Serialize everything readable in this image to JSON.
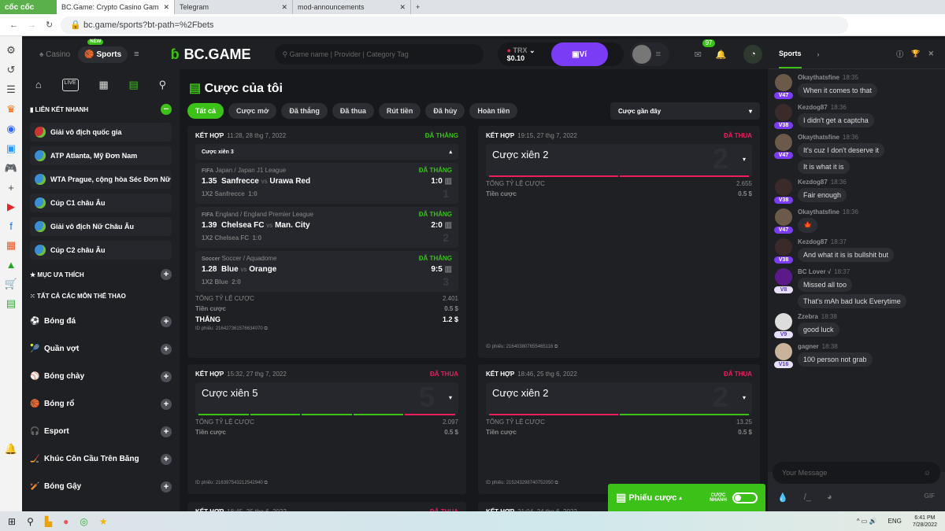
{
  "browser": {
    "brand": "cốc cốc",
    "tabs": [
      {
        "title": "BC.Game: Crypto Casino Gam",
        "active": true
      },
      {
        "title": "Telegram"
      },
      {
        "title": "mod-announcements"
      }
    ],
    "url": "bc.game/sports?bt-path=%2Fbets"
  },
  "header": {
    "casino": "Casino",
    "sports": "Sports",
    "new_badge": "NEW",
    "logo": "BC.GAME",
    "search_placeholder": "Game name | Provider | Category Tag",
    "currency": "TRX",
    "balance": "$0.10",
    "wallet": "Ví",
    "mail_count": "97"
  },
  "sidebar": {
    "quick_links_title": "LIÊN KẾT NHANH",
    "quick_links": [
      "Giải vô địch quốc gia",
      "ATP Atlanta, Mỹ Đơn Nam",
      "WTA Prague, cộng hòa Séc Đơn Nữ",
      "Cúp C1 châu Âu",
      "Giải vô địch Nữ Châu Âu",
      "Cúp C2 châu Âu"
    ],
    "favorites": "MỤC ƯA THÍCH",
    "all_sports": "TẤT CẢ CÁC MÔN THỂ THAO",
    "sports": [
      "Bóng đá",
      "Quần vợt",
      "Bóng chày",
      "Bóng rổ",
      "Esport",
      "Khúc Côn Cầu Trên Băng",
      "Bóng Gậy"
    ]
  },
  "main": {
    "title": "Cược của tôi",
    "filters": [
      "Tất cả",
      "Cược mở",
      "Đã thắng",
      "Đã thua",
      "Rút tiền",
      "Đã hủy",
      "Hoàn tiền"
    ],
    "sort": "Cược gần đây",
    "labels": {
      "combo": "KẾT HỢP",
      "total_odds": "TỔNG TỶ LỆ CƯỢC",
      "stake": "Tiền cược",
      "win": "THẮNG",
      "ticket": "ID phiếu:"
    },
    "bets": [
      {
        "time": "11:28, 28 thg 7, 2022",
        "status": "ĐÃ THẮNG",
        "type": "Cược xiên 3",
        "odds": "2.401",
        "stake": "0.5 $",
        "payout": "1.2 $",
        "id": "216427361576634070",
        "legs": [
          {
            "league": "Japan / Japan J1 League",
            "sport": "FIFA",
            "status": "ĐÃ THẮNG",
            "odds": "1.35",
            "home": "Sanfrecce",
            "away": "Urawa Red",
            "score": "1:0",
            "pick": "1X2 Sanfrecce",
            "pick_score": "1:0"
          },
          {
            "league": "England / England Premier League",
            "sport": "FIFA",
            "status": "ĐÃ THẮNG",
            "odds": "1.39",
            "home": "Chelsea FC",
            "away": "Man. City",
            "score": "2:0",
            "pick": "1X2 Chelsea FC",
            "pick_score": "1:0"
          },
          {
            "league": "Soccer / Aquadome",
            "sport": "Soccer",
            "status": "ĐÃ THẮNG",
            "odds": "1.28",
            "home": "Blue",
            "away": "Orange",
            "score": "9:5",
            "pick": "1X2 Blue",
            "pick_score": "2:0"
          }
        ]
      },
      {
        "time": "19:15, 27 thg 7, 2022",
        "status": "ĐÃ THUA",
        "type": "Cược xiên 2",
        "count": "2",
        "odds": "2.655",
        "stake": "0.5 $",
        "id": "216403807655465116",
        "results": [
          "lose",
          "lose"
        ]
      },
      {
        "time": "15:32, 27 thg 7, 2022",
        "status": "ĐÃ THUA",
        "type": "Cược xiên 5",
        "count": "5",
        "odds": "2.097",
        "stake": "0.5 $",
        "id": "216397543212542940",
        "results": [
          "win",
          "win",
          "win",
          "win",
          "lose"
        ]
      },
      {
        "time": "18:46, 25 thg 6, 2022",
        "status": "ĐÃ THUA",
        "type": "Cược xiên 2",
        "count": "2",
        "odds": "13.25",
        "stake": "0.5 $",
        "id": "215243298740752050",
        "results": [
          "lose",
          "win"
        ]
      },
      {
        "time": "18:45, 25 thg 6, 2022",
        "status": "ĐÃ THUA"
      },
      {
        "time": "21:04, 24 thg 6, 2022"
      }
    ]
  },
  "betslip": {
    "label": "Phiếu cược",
    "quick": "CƯỢC NHANH"
  },
  "chat": {
    "tab": "Sports",
    "placeholder": "Your Message",
    "messages": [
      {
        "user": "Okaythatsfine",
        "time": "18:35",
        "level": "V47",
        "text": [
          "When it comes to that"
        ]
      },
      {
        "user": "Kezdog87",
        "time": "18:36",
        "level": "V38",
        "text": [
          "I didn't get a captcha"
        ]
      },
      {
        "user": "Okaythatsfine",
        "time": "18:36",
        "level": "V47",
        "text": [
          "It's cuz I don't deserve it",
          "It is what it is"
        ]
      },
      {
        "user": "Kezdog87",
        "time": "18:36",
        "level": "V38",
        "text": [
          "Fair enough"
        ]
      },
      {
        "user": "Okaythatsfine",
        "time": "18:36",
        "level": "V47",
        "text": [
          "🍁"
        ]
      },
      {
        "user": "Kezdog87",
        "time": "18:37",
        "level": "V38",
        "text": [
          "And what it is is bullshit but"
        ]
      },
      {
        "user": "BC Lover √",
        "time": "18:37",
        "level": "V8",
        "text": [
          "Missed all too",
          "That's mAh bad luck Everytime"
        ]
      },
      {
        "user": "Zzebra",
        "time": "18:38",
        "level": "V9",
        "text": [
          "good luck"
        ]
      },
      {
        "user": "gagner",
        "time": "18:38",
        "level": "V16",
        "text": [
          "100 person not grab"
        ]
      }
    ]
  },
  "taskbar": {
    "lang": "ENG",
    "time": "6:41 PM",
    "date": "7/28/2022"
  },
  "colors": {
    "accent": "#3bc117",
    "lose": "#ed1d5d",
    "wallet": "#7b3cf5"
  }
}
